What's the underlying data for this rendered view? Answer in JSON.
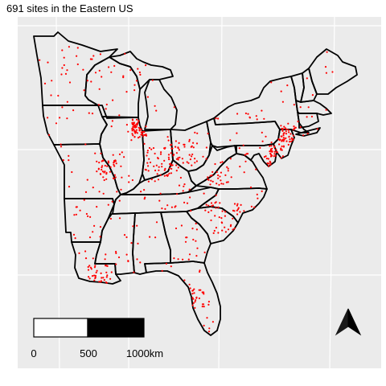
{
  "title": "691 sites in the Eastern US",
  "map": {
    "background_color": "#ebebeb",
    "grid_color": "#ffffff",
    "point_color": "#ff0000",
    "border_color": "#000000",
    "site_count": 691
  },
  "scale_bar": {
    "labels": [
      "0",
      "500",
      "1000km"
    ],
    "fill_colors": [
      "#ffffff",
      "#000000"
    ]
  },
  "north_arrow": {
    "icon": "north-arrow-icon"
  }
}
